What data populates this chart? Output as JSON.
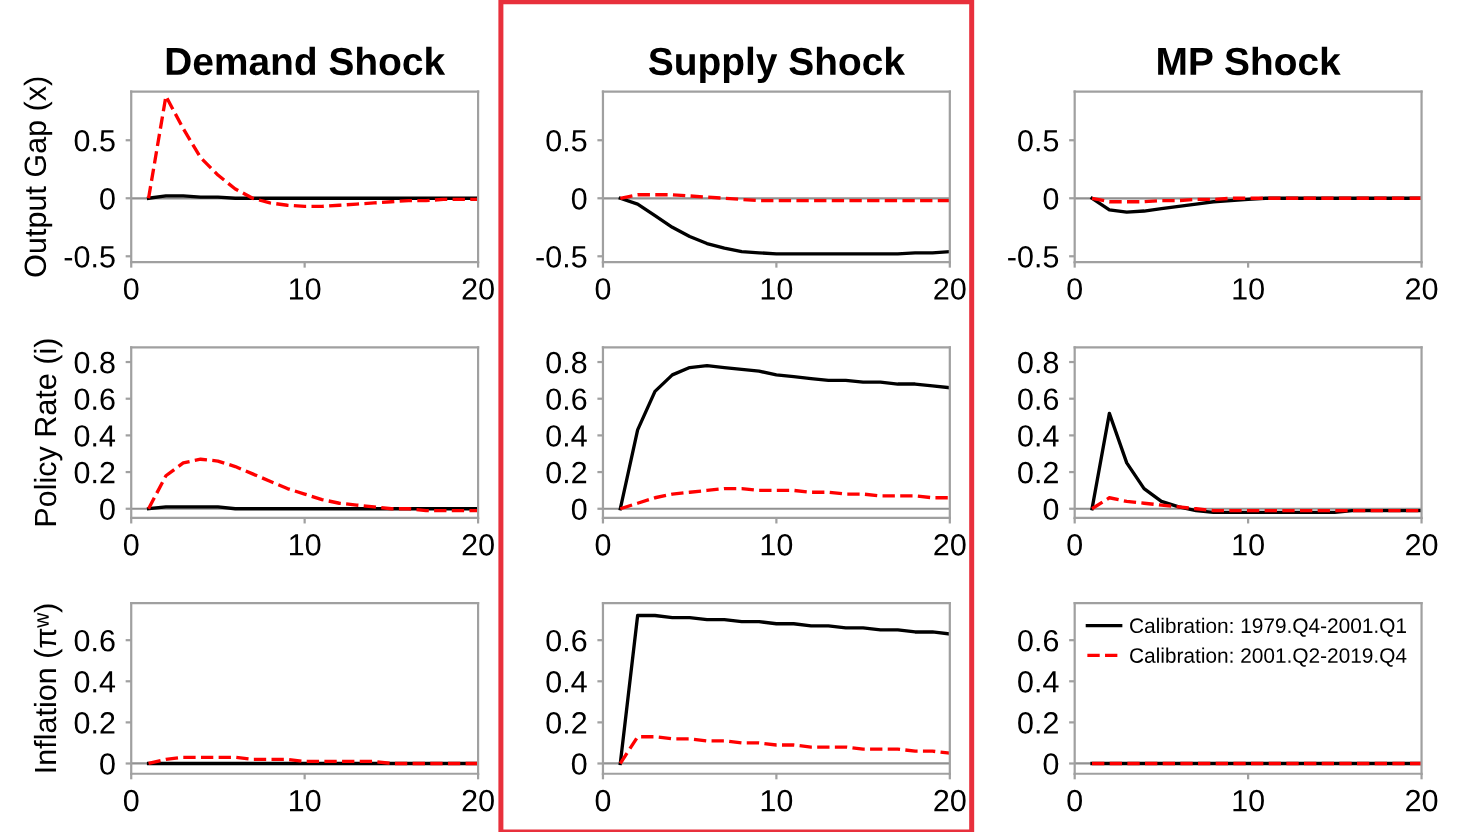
{
  "chart_data": [
    {
      "type": "line",
      "title": "Demand Shock",
      "ylabel": "Output Gap (x)",
      "x": [
        1,
        2,
        3,
        4,
        5,
        6,
        7,
        8,
        9,
        10,
        11,
        12,
        13,
        14,
        15,
        16,
        17,
        18,
        19,
        20
      ],
      "xlim": [
        0,
        20
      ],
      "xticks": [
        0,
        10,
        20
      ],
      "ylim": [
        -0.55,
        0.92
      ],
      "yticks": [
        -0.5,
        0,
        0.5
      ],
      "ref_lines": [
        {
          "axis": "y",
          "value": 0,
          "color": "#909090"
        }
      ],
      "series": [
        {
          "color": "#000000",
          "line_style": "solid",
          "values": [
            0,
            0.02,
            0.02,
            0.01,
            0.01,
            0,
            0,
            0,
            0,
            0,
            0,
            0,
            0,
            0,
            0,
            0,
            0,
            0,
            0,
            0
          ]
        },
        {
          "color": "#ff0000",
          "line_style": "dashed",
          "values": [
            0,
            0.88,
            0.6,
            0.35,
            0.2,
            0.08,
            0,
            -0.04,
            -0.06,
            -0.07,
            -0.07,
            -0.06,
            -0.05,
            -0.04,
            -0.03,
            -0.02,
            -0.02,
            -0.01,
            -0.01,
            -0.01
          ]
        }
      ]
    },
    {
      "type": "line",
      "title": "Supply Shock",
      "x": [
        1,
        2,
        3,
        4,
        5,
        6,
        7,
        8,
        9,
        10,
        11,
        12,
        13,
        14,
        15,
        16,
        17,
        18,
        19,
        20
      ],
      "xlim": [
        0,
        20
      ],
      "xticks": [
        0,
        10,
        20
      ],
      "ylim": [
        -0.55,
        0.92
      ],
      "yticks": [
        -0.5,
        0,
        0.5
      ],
      "ref_lines": [
        {
          "axis": "y",
          "value": 0,
          "color": "#909090"
        }
      ],
      "series": [
        {
          "color": "#000000",
          "line_style": "solid",
          "values": [
            0,
            -0.05,
            -0.15,
            -0.25,
            -0.33,
            -0.39,
            -0.43,
            -0.46,
            -0.47,
            -0.48,
            -0.48,
            -0.48,
            -0.48,
            -0.48,
            -0.48,
            -0.48,
            -0.48,
            -0.47,
            -0.47,
            -0.46
          ]
        },
        {
          "color": "#ff0000",
          "line_style": "dashed",
          "values": [
            0,
            0.03,
            0.03,
            0.03,
            0.02,
            0.01,
            0,
            -0.01,
            -0.02,
            -0.02,
            -0.02,
            -0.02,
            -0.02,
            -0.02,
            -0.02,
            -0.02,
            -0.02,
            -0.02,
            -0.02,
            -0.02
          ]
        }
      ]
    },
    {
      "type": "line",
      "title": "MP Shock",
      "x": [
        1,
        2,
        3,
        4,
        5,
        6,
        7,
        8,
        9,
        10,
        11,
        12,
        13,
        14,
        15,
        16,
        17,
        18,
        19,
        20
      ],
      "xlim": [
        0,
        20
      ],
      "xticks": [
        0,
        10,
        20
      ],
      "ylim": [
        -0.55,
        0.92
      ],
      "yticks": [
        -0.5,
        0,
        0.5
      ],
      "ref_lines": [
        {
          "axis": "y",
          "value": 0,
          "color": "#909090"
        }
      ],
      "series": [
        {
          "color": "#000000",
          "line_style": "solid",
          "values": [
            0,
            -0.1,
            -0.12,
            -0.11,
            -0.09,
            -0.07,
            -0.05,
            -0.03,
            -0.02,
            -0.01,
            0,
            0,
            0,
            0,
            0,
            0,
            0,
            0,
            0,
            0
          ]
        },
        {
          "color": "#ff0000",
          "line_style": "dashed",
          "values": [
            0,
            -0.03,
            -0.03,
            -0.03,
            -0.02,
            -0.02,
            -0.01,
            -0.01,
            0,
            0,
            0,
            0,
            0,
            0,
            0,
            0,
            0,
            0,
            0,
            0
          ]
        }
      ]
    },
    {
      "type": "line",
      "ylabel": "Policy Rate (i)",
      "x": [
        1,
        2,
        3,
        4,
        5,
        6,
        7,
        8,
        9,
        10,
        11,
        12,
        13,
        14,
        15,
        16,
        17,
        18,
        19,
        20
      ],
      "xlim": [
        0,
        20
      ],
      "xticks": [
        0,
        10,
        20
      ],
      "ylim": [
        -0.05,
        0.88
      ],
      "yticks": [
        0,
        0.2,
        0.4,
        0.6,
        0.8
      ],
      "ref_lines": [
        {
          "axis": "y",
          "value": 0,
          "color": "#909090"
        }
      ],
      "series": [
        {
          "color": "#000000",
          "line_style": "solid",
          "values": [
            0,
            0.01,
            0.01,
            0.01,
            0.01,
            0,
            0,
            0,
            0,
            0,
            0,
            0,
            0,
            0,
            0,
            0,
            0,
            0,
            0,
            0
          ]
        },
        {
          "color": "#ff0000",
          "line_style": "dashed",
          "values": [
            0,
            0.18,
            0.25,
            0.27,
            0.26,
            0.23,
            0.19,
            0.15,
            0.11,
            0.08,
            0.05,
            0.03,
            0.02,
            0.01,
            0,
            0,
            -0.01,
            -0.01,
            -0.01,
            -0.01
          ]
        }
      ]
    },
    {
      "type": "line",
      "x": [
        1,
        2,
        3,
        4,
        5,
        6,
        7,
        8,
        9,
        10,
        11,
        12,
        13,
        14,
        15,
        16,
        17,
        18,
        19,
        20
      ],
      "xlim": [
        0,
        20
      ],
      "xticks": [
        0,
        10,
        20
      ],
      "ylim": [
        -0.05,
        0.88
      ],
      "yticks": [
        0,
        0.2,
        0.4,
        0.6,
        0.8
      ],
      "ref_lines": [
        {
          "axis": "y",
          "value": 0,
          "color": "#909090"
        }
      ],
      "series": [
        {
          "color": "#000000",
          "line_style": "solid",
          "values": [
            0,
            0.43,
            0.64,
            0.73,
            0.77,
            0.78,
            0.77,
            0.76,
            0.75,
            0.73,
            0.72,
            0.71,
            0.7,
            0.7,
            0.69,
            0.69,
            0.68,
            0.68,
            0.67,
            0.66
          ]
        },
        {
          "color": "#ff0000",
          "line_style": "dashed",
          "values": [
            0,
            0.03,
            0.06,
            0.08,
            0.09,
            0.1,
            0.11,
            0.11,
            0.1,
            0.1,
            0.1,
            0.09,
            0.09,
            0.08,
            0.08,
            0.07,
            0.07,
            0.07,
            0.06,
            0.06
          ]
        }
      ]
    },
    {
      "type": "line",
      "x": [
        1,
        2,
        3,
        4,
        5,
        6,
        7,
        8,
        9,
        10,
        11,
        12,
        13,
        14,
        15,
        16,
        17,
        18,
        19,
        20
      ],
      "xlim": [
        0,
        20
      ],
      "xticks": [
        0,
        10,
        20
      ],
      "ylim": [
        -0.05,
        0.88
      ],
      "yticks": [
        0,
        0.2,
        0.4,
        0.6,
        0.8
      ],
      "ref_lines": [
        {
          "axis": "y",
          "value": 0,
          "color": "#909090"
        }
      ],
      "series": [
        {
          "color": "#000000",
          "line_style": "solid",
          "values": [
            0,
            0.52,
            0.25,
            0.11,
            0.04,
            0.01,
            -0.01,
            -0.02,
            -0.02,
            -0.02,
            -0.02,
            -0.02,
            -0.02,
            -0.02,
            -0.02,
            -0.01,
            -0.01,
            -0.01,
            -0.01,
            -0.01
          ]
        },
        {
          "color": "#ff0000",
          "line_style": "dashed",
          "values": [
            0,
            0.06,
            0.04,
            0.03,
            0.02,
            0.01,
            0,
            -0.01,
            -0.01,
            -0.01,
            -0.01,
            -0.01,
            -0.01,
            -0.01,
            -0.01,
            -0.01,
            -0.01,
            -0.01,
            -0.01,
            -0.01
          ]
        }
      ]
    },
    {
      "type": "line",
      "ylabel": "Inflation (πʷ)",
      "x": [
        1,
        2,
        3,
        4,
        5,
        6,
        7,
        8,
        9,
        10,
        11,
        12,
        13,
        14,
        15,
        16,
        17,
        18,
        19,
        20
      ],
      "xlim": [
        0,
        20
      ],
      "xticks": [
        0,
        10,
        20
      ],
      "ylim": [
        -0.05,
        0.78
      ],
      "yticks": [
        0,
        0.2,
        0.4,
        0.6
      ],
      "ref_lines": [
        {
          "axis": "y",
          "value": 0,
          "color": "#909090"
        }
      ],
      "series": [
        {
          "color": "#000000",
          "line_style": "solid",
          "values": [
            0,
            0,
            0,
            0,
            0,
            0,
            0,
            0,
            0,
            0,
            0,
            0,
            0,
            0,
            0,
            0,
            0,
            0,
            0,
            0
          ]
        },
        {
          "color": "#ff0000",
          "line_style": "dashed",
          "values": [
            0,
            0.02,
            0.03,
            0.03,
            0.03,
            0.03,
            0.02,
            0.02,
            0.02,
            0.01,
            0.01,
            0.01,
            0.01,
            0.01,
            0,
            0,
            0,
            0,
            0,
            0
          ]
        }
      ]
    },
    {
      "type": "line",
      "x": [
        1,
        2,
        3,
        4,
        5,
        6,
        7,
        8,
        9,
        10,
        11,
        12,
        13,
        14,
        15,
        16,
        17,
        18,
        19,
        20
      ],
      "xlim": [
        0,
        20
      ],
      "xticks": [
        0,
        10,
        20
      ],
      "ylim": [
        -0.05,
        0.78
      ],
      "yticks": [
        0,
        0.2,
        0.4,
        0.6
      ],
      "ref_lines": [
        {
          "axis": "y",
          "value": 0,
          "color": "#909090"
        }
      ],
      "series": [
        {
          "color": "#000000",
          "line_style": "solid",
          "values": [
            0,
            0.72,
            0.72,
            0.71,
            0.71,
            0.7,
            0.7,
            0.69,
            0.69,
            0.68,
            0.68,
            0.67,
            0.67,
            0.66,
            0.66,
            0.65,
            0.65,
            0.64,
            0.64,
            0.63
          ]
        },
        {
          "color": "#ff0000",
          "line_style": "dashed",
          "values": [
            0,
            0.13,
            0.13,
            0.12,
            0.12,
            0.11,
            0.11,
            0.1,
            0.1,
            0.09,
            0.09,
            0.08,
            0.08,
            0.08,
            0.07,
            0.07,
            0.07,
            0.06,
            0.06,
            0.05
          ]
        }
      ]
    },
    {
      "type": "line",
      "x": [
        1,
        2,
        3,
        4,
        5,
        6,
        7,
        8,
        9,
        10,
        11,
        12,
        13,
        14,
        15,
        16,
        17,
        18,
        19,
        20
      ],
      "xlim": [
        0,
        20
      ],
      "xticks": [
        0,
        10,
        20
      ],
      "ylim": [
        -0.05,
        0.78
      ],
      "yticks": [
        0,
        0.2,
        0.4,
        0.6
      ],
      "legend": "top right",
      "ref_lines": [
        {
          "axis": "y",
          "value": 0,
          "color": "#909090"
        }
      ],
      "series": [
        {
          "name": "Calibration: 1979.Q4-2001.Q1",
          "color": "#000000",
          "line_style": "solid",
          "values": [
            0,
            0,
            0,
            0,
            0,
            0,
            0,
            0,
            0,
            0,
            0,
            0,
            0,
            0,
            0,
            0,
            0,
            0,
            0,
            0
          ]
        },
        {
          "name": "Calibration: 2001.Q2-2019.Q4",
          "color": "#ff0000",
          "line_style": "dashed",
          "values": [
            0,
            0,
            0,
            0,
            0,
            0,
            0,
            0,
            0,
            0,
            0,
            0,
            0,
            0,
            0,
            0,
            0,
            0,
            0,
            0
          ]
        }
      ]
    }
  ]
}
